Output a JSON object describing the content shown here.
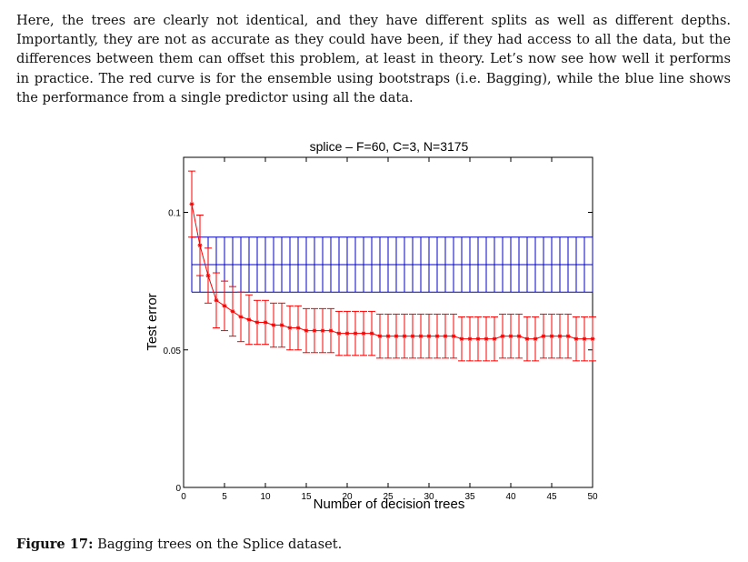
{
  "paragraph": "Here, the trees are clearly not identical, and they have different splits as well as different depths. Importantly, they are not as accurate as they could have been, if they had access to all the data, but the differences between them can offset this problem, at least in theory. Let’s now see how well it performs in practice. The red curve is for the ensemble using bootstraps (i.e. Bagging), while the blue line shows the performance from a single predictor using all the data.",
  "caption": {
    "label": "Figure 17:",
    "text": "Bagging trees on the Splice dataset."
  },
  "chart_data": {
    "type": "line",
    "title": "splice – F=60, C=3, N=3175",
    "xlabel": "Number of decision trees",
    "ylabel": "Test error",
    "xlim": [
      0,
      50
    ],
    "ylim": [
      0,
      0.12
    ],
    "xticks": [
      0,
      5,
      10,
      15,
      20,
      25,
      30,
      35,
      40,
      45,
      50
    ],
    "yticks": [
      0,
      0.05,
      0.1
    ],
    "ytick_labels": [
      "0",
      "0.05",
      "0.1"
    ],
    "grid": false,
    "colors": {
      "bagging": "#ff0000",
      "single": "#0000cc"
    },
    "series": [
      {
        "key": "bagging",
        "x": [
          1,
          2,
          3,
          4,
          5,
          6,
          7,
          8,
          9,
          10,
          11,
          12,
          13,
          14,
          15,
          16,
          17,
          18,
          19,
          20,
          21,
          22,
          23,
          24,
          25,
          26,
          27,
          28,
          29,
          30,
          31,
          32,
          33,
          34,
          35,
          36,
          37,
          38,
          39,
          40,
          41,
          42,
          43,
          44,
          45,
          46,
          47,
          48,
          49,
          50
        ],
        "y": [
          0.103,
          0.088,
          0.077,
          0.068,
          0.066,
          0.064,
          0.062,
          0.061,
          0.06,
          0.06,
          0.059,
          0.059,
          0.058,
          0.058,
          0.057,
          0.057,
          0.057,
          0.057,
          0.056,
          0.056,
          0.056,
          0.056,
          0.056,
          0.055,
          0.055,
          0.055,
          0.055,
          0.055,
          0.055,
          0.055,
          0.055,
          0.055,
          0.055,
          0.054,
          0.054,
          0.054,
          0.054,
          0.054,
          0.055,
          0.055,
          0.055,
          0.054,
          0.054,
          0.055,
          0.055,
          0.055,
          0.055,
          0.054,
          0.054,
          0.054
        ],
        "err": [
          0.012,
          0.011,
          0.01,
          0.01,
          0.009,
          0.009,
          0.009,
          0.009,
          0.008,
          0.008,
          0.008,
          0.008,
          0.008,
          0.008,
          0.008,
          0.008,
          0.008,
          0.008,
          0.008,
          0.008,
          0.008,
          0.008,
          0.008,
          0.008,
          0.008,
          0.008,
          0.008,
          0.008,
          0.008,
          0.008,
          0.008,
          0.008,
          0.008,
          0.008,
          0.008,
          0.008,
          0.008,
          0.008,
          0.008,
          0.008,
          0.008,
          0.008,
          0.008,
          0.008,
          0.008,
          0.008,
          0.008,
          0.008,
          0.008,
          0.008
        ]
      },
      {
        "key": "single",
        "x_range": [
          1,
          50
        ],
        "y": 0.081,
        "err": 0.01
      }
    ]
  }
}
